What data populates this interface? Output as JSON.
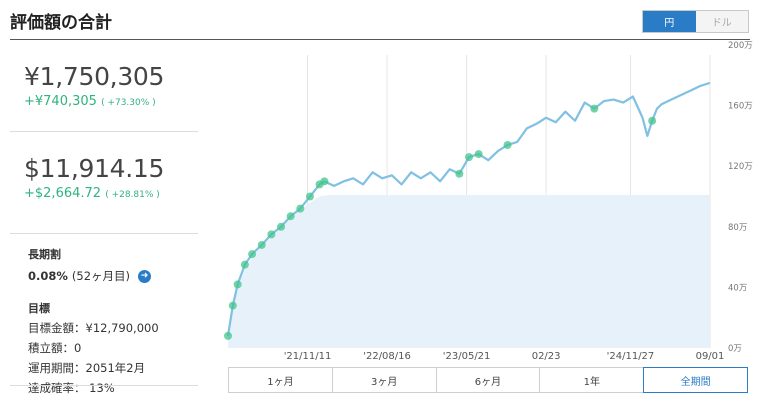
{
  "header": {
    "title": "評価額の合計"
  },
  "currency_toggle": {
    "options": [
      "円",
      "ドル"
    ],
    "selected": "円"
  },
  "jpy": {
    "total": "¥1,750,305",
    "gain": "+¥740,305",
    "gain_pct": "( +73.30% )"
  },
  "usd": {
    "total": "$11,914.15",
    "gain": "+$2,664.72",
    "gain_pct": "( +28.81% )"
  },
  "long_term_discount": {
    "label": "長期割",
    "value": "0.08%",
    "months": "(52ヶ月目)"
  },
  "goal": {
    "label": "目標",
    "lines": [
      "目標金額：¥12,790,000",
      "積立額：0",
      "運用期間：2051年2月",
      "達成確率： 13%"
    ]
  },
  "period_buttons": [
    "1ヶ月",
    "3ヶ月",
    "6ヶ月",
    "1年",
    "全期間"
  ],
  "period_selected": "全期間",
  "colors": {
    "accent": "#2a7cc7",
    "gain": "#2fb380",
    "line": "#7fc0e3",
    "dot": "#43c48c",
    "principal_fill": "#e6f1f9"
  },
  "chart_data": {
    "type": "line",
    "x_ticks": [
      "'21/11/11",
      "'22/08/16",
      "'23/05/21",
      "02/23",
      "'24/11/27",
      "09/01"
    ],
    "y_ticks": [
      "0万",
      "40万",
      "80万",
      "120万",
      "160万",
      "200万"
    ],
    "ylim": [
      0,
      200
    ],
    "grid": true,
    "series": [
      {
        "role": "valuation",
        "x": [
          0,
          0.01,
          0.02,
          0.035,
          0.05,
          0.07,
          0.09,
          0.11,
          0.13,
          0.15,
          0.17,
          0.19,
          0.2,
          0.22,
          0.24,
          0.26,
          0.28,
          0.3,
          0.32,
          0.34,
          0.36,
          0.38,
          0.4,
          0.42,
          0.44,
          0.46,
          0.48,
          0.5,
          0.52,
          0.54,
          0.56,
          0.58,
          0.6,
          0.62,
          0.64,
          0.66,
          0.68,
          0.7,
          0.72,
          0.74,
          0.76,
          0.78,
          0.8,
          0.82,
          0.84,
          0.86,
          0.87,
          0.88,
          0.89,
          0.9,
          0.92,
          0.94,
          0.96,
          0.98,
          1.0
        ],
        "values": [
          8,
          28,
          42,
          55,
          62,
          68,
          75,
          80,
          87,
          92,
          100,
          108,
          110,
          107,
          110,
          112,
          108,
          116,
          112,
          114,
          108,
          116,
          112,
          116,
          110,
          118,
          115,
          126,
          128,
          124,
          130,
          134,
          136,
          145,
          148,
          152,
          149,
          156,
          150,
          162,
          158,
          163,
          164,
          162,
          166,
          152,
          140,
          150,
          158,
          161,
          164,
          167,
          170,
          173,
          175
        ]
      },
      {
        "role": "principal",
        "x": [
          0,
          0.01,
          0.02,
          0.035,
          0.05,
          0.07,
          0.09,
          0.11,
          0.13,
          0.15,
          0.17,
          0.19,
          0.21,
          0.25,
          0.3,
          0.5,
          0.84,
          0.86,
          1.0
        ],
        "values": [
          8,
          28,
          40,
          52,
          60,
          67,
          73,
          79,
          86,
          91,
          96,
          100,
          101,
          101,
          101,
          101,
          101,
          101,
          101
        ]
      }
    ]
  }
}
